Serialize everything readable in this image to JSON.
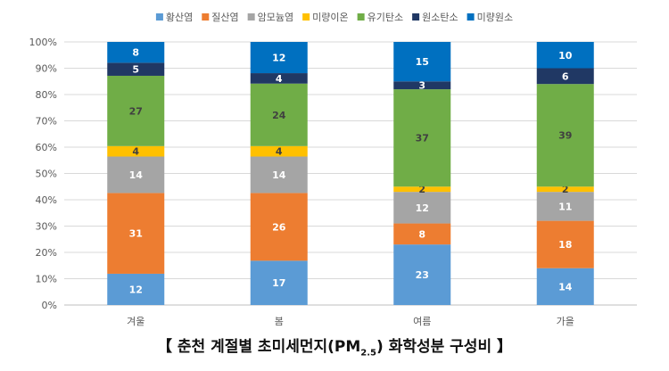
{
  "chart_data": {
    "type": "bar",
    "stacked": true,
    "percent": true,
    "categories": [
      "겨울",
      "봄",
      "여름",
      "가을"
    ],
    "series": [
      {
        "name": "황산염",
        "color": "#5B9BD5",
        "label_color": "#ffffff",
        "values": [
          12,
          17,
          23,
          14
        ]
      },
      {
        "name": "질산염",
        "color": "#ED7D31",
        "label_color": "#ffffff",
        "values": [
          31,
          26,
          8,
          18
        ]
      },
      {
        "name": "암모늄염",
        "color": "#A5A5A5",
        "label_color": "#ffffff",
        "values": [
          14,
          14,
          12,
          11
        ]
      },
      {
        "name": "미량이온",
        "color": "#FFC000",
        "label_color": "#404040",
        "values": [
          4,
          4,
          2,
          2
        ]
      },
      {
        "name": "유기탄소",
        "color": "#70AD47",
        "label_color": "#404040",
        "values": [
          27,
          24,
          37,
          39
        ]
      },
      {
        "name": "원소탄소",
        "color": "#203864",
        "label_color": "#ffffff",
        "values": [
          5,
          4,
          3,
          6
        ]
      },
      {
        "name": "미량원소",
        "color": "#0070C0",
        "label_color": "#ffffff",
        "values": [
          8,
          12,
          15,
          10
        ]
      }
    ],
    "ylim": [
      0,
      100
    ],
    "yticks": [
      "0%",
      "10%",
      "20%",
      "30%",
      "40%",
      "50%",
      "60%",
      "70%",
      "80%",
      "90%",
      "100%"
    ],
    "grid": true,
    "legend_position": "top"
  },
  "caption": {
    "open": "【 춘천 계절별 초미세먼지(PM",
    "sub": "2.5",
    "close": ") 화학성분 구성비 】"
  }
}
